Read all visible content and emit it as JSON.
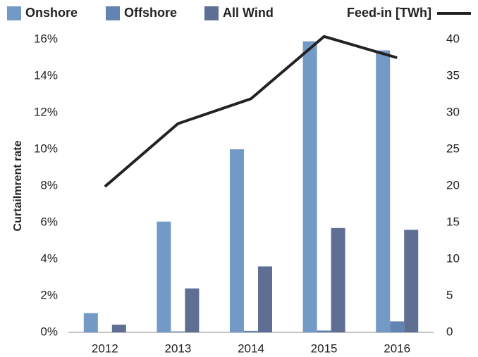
{
  "chart_data": {
    "type": "bar",
    "categories": [
      "2012",
      "2013",
      "2014",
      "2015",
      "2016"
    ],
    "series": [
      {
        "name": "Onshore",
        "color": "#7399c6",
        "values": [
          1.05,
          6.05,
          10.0,
          15.9,
          15.4
        ]
      },
      {
        "name": "Offshore",
        "color": "#6383b3",
        "values": [
          0,
          0.05,
          0.08,
          0.1,
          0.6
        ]
      },
      {
        "name": "All Wind",
        "color": "#5e6f93",
        "values": [
          0.42,
          2.4,
          3.6,
          5.7,
          5.6
        ]
      },
      {
        "name": "Feed-in [TWh]",
        "color": "#222222",
        "type": "line",
        "axis": "y2",
        "values": [
          19.9,
          28.5,
          31.9,
          40.4,
          37.5
        ]
      }
    ],
    "ylabel": "Curtailmrent rate",
    "ylim": [
      0,
      16
    ],
    "yticks": [
      {
        "value": 0,
        "label": "0%"
      },
      {
        "value": 2,
        "label": "2%"
      },
      {
        "value": 4,
        "label": "4%"
      },
      {
        "value": 6,
        "label": "6%"
      },
      {
        "value": 8,
        "label": "8%"
      },
      {
        "value": 10,
        "label": "10%"
      },
      {
        "value": 12,
        "label": "12%"
      },
      {
        "value": 14,
        "label": "14%"
      },
      {
        "value": 16,
        "label": "16%"
      }
    ],
    "y2lim": [
      0,
      40
    ],
    "y2ticks": [
      0,
      5,
      10,
      15,
      20,
      25,
      30,
      35,
      40
    ],
    "grid": false
  }
}
